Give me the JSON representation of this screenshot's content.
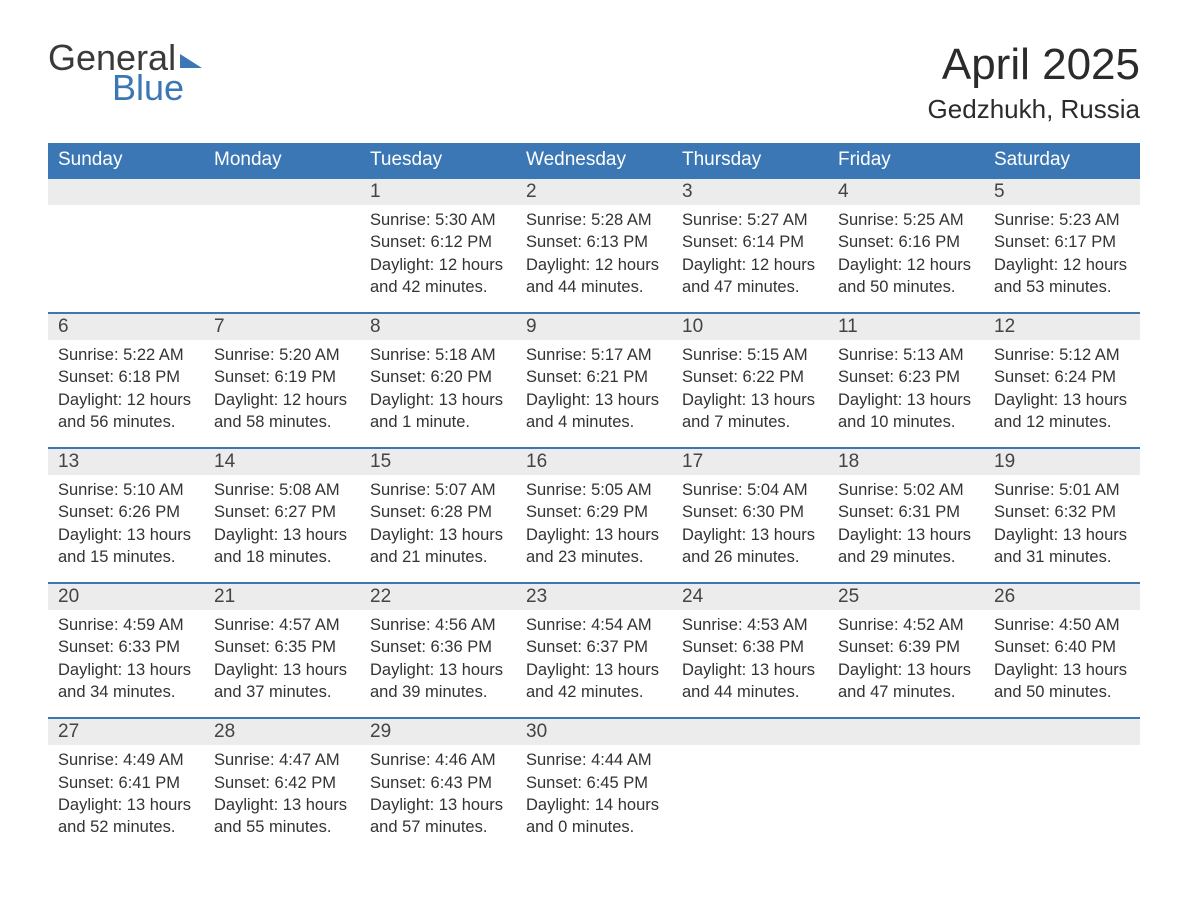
{
  "logo": {
    "general": "General",
    "blue": "Blue"
  },
  "title": "April 2025",
  "location": "Gedzhukh, Russia",
  "colors": {
    "header_bg": "#3b77b5",
    "header_text": "#ffffff",
    "daynum_bg": "#ececec",
    "row_border": "#3b77b5",
    "body_text": "#333333",
    "page_bg": "#ffffff"
  },
  "typography": {
    "title_fontsize": 44,
    "location_fontsize": 26,
    "day_header_fontsize": 19,
    "daynum_fontsize": 19,
    "body_fontsize": 16.5
  },
  "calendar": {
    "type": "table",
    "columns": [
      "Sunday",
      "Monday",
      "Tuesday",
      "Wednesday",
      "Thursday",
      "Friday",
      "Saturday"
    ],
    "weeks": [
      [
        null,
        null,
        {
          "n": "1",
          "sunrise": "5:30 AM",
          "sunset": "6:12 PM",
          "daylight": "12 hours and 42 minutes."
        },
        {
          "n": "2",
          "sunrise": "5:28 AM",
          "sunset": "6:13 PM",
          "daylight": "12 hours and 44 minutes."
        },
        {
          "n": "3",
          "sunrise": "5:27 AM",
          "sunset": "6:14 PM",
          "daylight": "12 hours and 47 minutes."
        },
        {
          "n": "4",
          "sunrise": "5:25 AM",
          "sunset": "6:16 PM",
          "daylight": "12 hours and 50 minutes."
        },
        {
          "n": "5",
          "sunrise": "5:23 AM",
          "sunset": "6:17 PM",
          "daylight": "12 hours and 53 minutes."
        }
      ],
      [
        {
          "n": "6",
          "sunrise": "5:22 AM",
          "sunset": "6:18 PM",
          "daylight": "12 hours and 56 minutes."
        },
        {
          "n": "7",
          "sunrise": "5:20 AM",
          "sunset": "6:19 PM",
          "daylight": "12 hours and 58 minutes."
        },
        {
          "n": "8",
          "sunrise": "5:18 AM",
          "sunset": "6:20 PM",
          "daylight": "13 hours and 1 minute."
        },
        {
          "n": "9",
          "sunrise": "5:17 AM",
          "sunset": "6:21 PM",
          "daylight": "13 hours and 4 minutes."
        },
        {
          "n": "10",
          "sunrise": "5:15 AM",
          "sunset": "6:22 PM",
          "daylight": "13 hours and 7 minutes."
        },
        {
          "n": "11",
          "sunrise": "5:13 AM",
          "sunset": "6:23 PM",
          "daylight": "13 hours and 10 minutes."
        },
        {
          "n": "12",
          "sunrise": "5:12 AM",
          "sunset": "6:24 PM",
          "daylight": "13 hours and 12 minutes."
        }
      ],
      [
        {
          "n": "13",
          "sunrise": "5:10 AM",
          "sunset": "6:26 PM",
          "daylight": "13 hours and 15 minutes."
        },
        {
          "n": "14",
          "sunrise": "5:08 AM",
          "sunset": "6:27 PM",
          "daylight": "13 hours and 18 minutes."
        },
        {
          "n": "15",
          "sunrise": "5:07 AM",
          "sunset": "6:28 PM",
          "daylight": "13 hours and 21 minutes."
        },
        {
          "n": "16",
          "sunrise": "5:05 AM",
          "sunset": "6:29 PM",
          "daylight": "13 hours and 23 minutes."
        },
        {
          "n": "17",
          "sunrise": "5:04 AM",
          "sunset": "6:30 PM",
          "daylight": "13 hours and 26 minutes."
        },
        {
          "n": "18",
          "sunrise": "5:02 AM",
          "sunset": "6:31 PM",
          "daylight": "13 hours and 29 minutes."
        },
        {
          "n": "19",
          "sunrise": "5:01 AM",
          "sunset": "6:32 PM",
          "daylight": "13 hours and 31 minutes."
        }
      ],
      [
        {
          "n": "20",
          "sunrise": "4:59 AM",
          "sunset": "6:33 PM",
          "daylight": "13 hours and 34 minutes."
        },
        {
          "n": "21",
          "sunrise": "4:57 AM",
          "sunset": "6:35 PM",
          "daylight": "13 hours and 37 minutes."
        },
        {
          "n": "22",
          "sunrise": "4:56 AM",
          "sunset": "6:36 PM",
          "daylight": "13 hours and 39 minutes."
        },
        {
          "n": "23",
          "sunrise": "4:54 AM",
          "sunset": "6:37 PM",
          "daylight": "13 hours and 42 minutes."
        },
        {
          "n": "24",
          "sunrise": "4:53 AM",
          "sunset": "6:38 PM",
          "daylight": "13 hours and 44 minutes."
        },
        {
          "n": "25",
          "sunrise": "4:52 AM",
          "sunset": "6:39 PM",
          "daylight": "13 hours and 47 minutes."
        },
        {
          "n": "26",
          "sunrise": "4:50 AM",
          "sunset": "6:40 PM",
          "daylight": "13 hours and 50 minutes."
        }
      ],
      [
        {
          "n": "27",
          "sunrise": "4:49 AM",
          "sunset": "6:41 PM",
          "daylight": "13 hours and 52 minutes."
        },
        {
          "n": "28",
          "sunrise": "4:47 AM",
          "sunset": "6:42 PM",
          "daylight": "13 hours and 55 minutes."
        },
        {
          "n": "29",
          "sunrise": "4:46 AM",
          "sunset": "6:43 PM",
          "daylight": "13 hours and 57 minutes."
        },
        {
          "n": "30",
          "sunrise": "4:44 AM",
          "sunset": "6:45 PM",
          "daylight": "14 hours and 0 minutes."
        },
        null,
        null,
        null
      ]
    ],
    "labels": {
      "sunrise": "Sunrise:",
      "sunset": "Sunset:",
      "daylight": "Daylight:"
    }
  }
}
